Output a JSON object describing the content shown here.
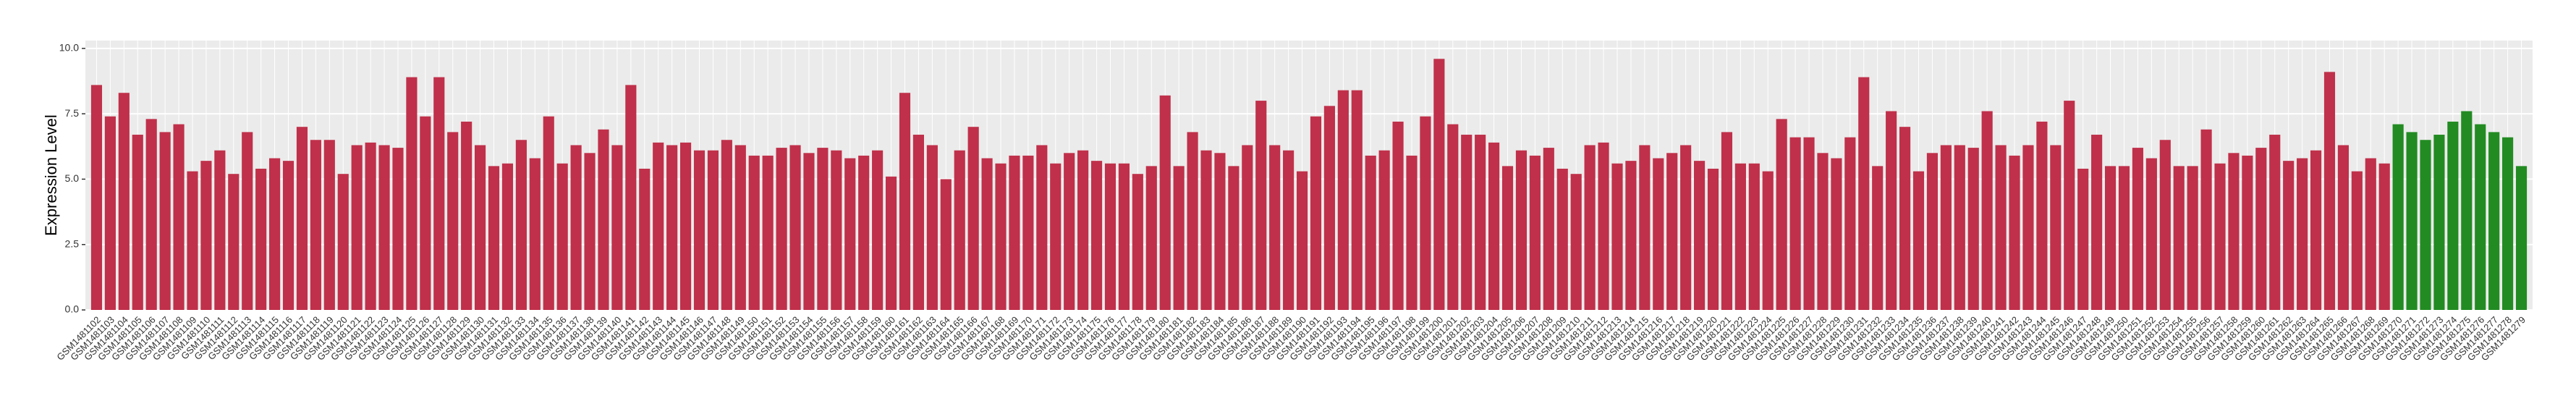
{
  "chart_data": {
    "type": "bar",
    "y_label": "Expression Level",
    "ylim": [
      0,
      10.3
    ],
    "yticks": [
      {
        "value": 0,
        "label": "0.0"
      },
      {
        "value": 2.5,
        "label": "2.5"
      },
      {
        "value": 5,
        "label": "5.0"
      },
      {
        "value": 7.5,
        "label": "7.5"
      },
      {
        "value": 10,
        "label": "10.0"
      }
    ],
    "grid": true,
    "categories": [
      "GSM1481102",
      "GSM1481103",
      "GSM1481104",
      "GSM1481105",
      "GSM1481106",
      "GSM1481107",
      "GSM1481108",
      "GSM1481109",
      "GSM1481110",
      "GSM1481111",
      "GSM1481112",
      "GSM1481113",
      "GSM1481114",
      "GSM1481115",
      "GSM1481116",
      "GSM1481117",
      "GSM1481118",
      "GSM1481119",
      "GSM1481120",
      "GSM1481121",
      "GSM1481122",
      "GSM1481123",
      "GSM1481124",
      "GSM1481125",
      "GSM1481126",
      "GSM1481127",
      "GSM1481128",
      "GSM1481129",
      "GSM1481130",
      "GSM1481131",
      "GSM1481132",
      "GSM1481133",
      "GSM1481134",
      "GSM1481135",
      "GSM1481136",
      "GSM1481137",
      "GSM1481138",
      "GSM1481139",
      "GSM1481140",
      "GSM1481141",
      "GSM1481142",
      "GSM1481143",
      "GSM1481144",
      "GSM1481145",
      "GSM1481146",
      "GSM1481147",
      "GSM1481148",
      "GSM1481149",
      "GSM1481150",
      "GSM1481151",
      "GSM1481152",
      "GSM1481153",
      "GSM1481154",
      "GSM1481155",
      "GSM1481156",
      "GSM1481157",
      "GSM1481158",
      "GSM1481159",
      "GSM1481160",
      "GSM1481161",
      "GSM1481162",
      "GSM1481163",
      "GSM1481164",
      "GSM1481165",
      "GSM1481166",
      "GSM1481167",
      "GSM1481168",
      "GSM1481169",
      "GSM1481170",
      "GSM1481171",
      "GSM1481172",
      "GSM1481173",
      "GSM1481174",
      "GSM1481175",
      "GSM1481176",
      "GSM1481177",
      "GSM1481178",
      "GSM1481179",
      "GSM1481180",
      "GSM1481181",
      "GSM1481182",
      "GSM1481183",
      "GSM1481184",
      "GSM1481185",
      "GSM1481186",
      "GSM1481187",
      "GSM1481188",
      "GSM1481189",
      "GSM1481190",
      "GSM1481191",
      "GSM1481192",
      "GSM1481193",
      "GSM1481194",
      "GSM1481195",
      "GSM1481196",
      "GSM1481197",
      "GSM1481198",
      "GSM1481199",
      "GSM1481200",
      "GSM1481201",
      "GSM1481202",
      "GSM1481203",
      "GSM1481204",
      "GSM1481205",
      "GSM1481206",
      "GSM1481207",
      "GSM1481208",
      "GSM1481209",
      "GSM1481210",
      "GSM1481211",
      "GSM1481212",
      "GSM1481213",
      "GSM1481214",
      "GSM1481215",
      "GSM1481216",
      "GSM1481217",
      "GSM1481218",
      "GSM1481219",
      "GSM1481220",
      "GSM1481221",
      "GSM1481222",
      "GSM1481223",
      "GSM1481224",
      "GSM1481225",
      "GSM1481226",
      "GSM1481227",
      "GSM1481228",
      "GSM1481229",
      "GSM1481230",
      "GSM1481231",
      "GSM1481232",
      "GSM1481233",
      "GSM1481234",
      "GSM1481235",
      "GSM1481236",
      "GSM1481237",
      "GSM1481238",
      "GSM1481239",
      "GSM1481240",
      "GSM1481241",
      "GSM1481242",
      "GSM1481243",
      "GSM1481244",
      "GSM1481245",
      "GSM1481246",
      "GSM1481247",
      "GSM1481248",
      "GSM1481249",
      "GSM1481250",
      "GSM1481251",
      "GSM1481252",
      "GSM1481253",
      "GSM1481254",
      "GSM1481255",
      "GSM1481256",
      "GSM1481257",
      "GSM1481258",
      "GSM1481259",
      "GSM1481260",
      "GSM1481261",
      "GSM1481262",
      "GSM1481263",
      "GSM1481264",
      "GSM1481265",
      "GSM1481266",
      "GSM1481267",
      "GSM1481268",
      "GSM1481269",
      "GSM1481270",
      "GSM1481271",
      "GSM1481272",
      "GSM1481273",
      "GSM1481274",
      "GSM1481275",
      "GSM1481276",
      "GSM1481277",
      "GSM1481278",
      "GSM1481279"
    ],
    "values": [
      8.6,
      7.4,
      8.3,
      6.7,
      7.3,
      6.8,
      7.1,
      5.3,
      5.7,
      6.1,
      5.2,
      6.8,
      5.4,
      5.8,
      5.7,
      7.0,
      6.5,
      6.5,
      5.2,
      6.3,
      6.4,
      6.3,
      6.2,
      8.9,
      7.4,
      8.9,
      6.8,
      7.2,
      6.3,
      5.5,
      5.6,
      6.5,
      5.8,
      7.4,
      5.6,
      6.3,
      6.0,
      6.9,
      6.3,
      8.6,
      5.4,
      6.4,
      6.3,
      6.4,
      6.1,
      6.1,
      6.5,
      6.3,
      5.9,
      5.9,
      6.2,
      6.3,
      6.0,
      6.2,
      6.1,
      5.8,
      5.9,
      6.1,
      5.1,
      8.3,
      6.7,
      6.3,
      5.0,
      6.1,
      7.0,
      5.8,
      5.6,
      5.9,
      5.9,
      6.3,
      5.6,
      6.0,
      6.1,
      5.7,
      5.6,
      5.6,
      5.2,
      5.5,
      8.2,
      5.5,
      6.8,
      6.1,
      6.0,
      5.5,
      6.3,
      8.0,
      6.3,
      6.1,
      5.3,
      7.4,
      7.8,
      8.4,
      8.4,
      5.9,
      6.1,
      7.2,
      5.9,
      7.4,
      9.6,
      7.1,
      6.7,
      6.7,
      6.4,
      5.5,
      6.1,
      5.9,
      6.2,
      5.4,
      5.2,
      6.3,
      6.4,
      5.6,
      5.7,
      6.3,
      5.8,
      6.0,
      6.3,
      5.7,
      5.4,
      6.8,
      5.6,
      5.6,
      5.3,
      7.3,
      6.6,
      6.6,
      6.0,
      5.8,
      6.6,
      8.9,
      5.5,
      7.6,
      7.0,
      5.3,
      6.0,
      6.3,
      6.3,
      6.2,
      7.6,
      6.3,
      5.9,
      6.3,
      7.2,
      6.3,
      8.0,
      5.4,
      6.7,
      5.5,
      5.5,
      6.2,
      5.8,
      6.5,
      5.5,
      5.5,
      6.9,
      5.6,
      6.0,
      5.9,
      6.2,
      6.7,
      5.7,
      5.8,
      6.1,
      9.1,
      6.3,
      5.3,
      5.8,
      5.6,
      7.1,
      6.8,
      6.5,
      6.7,
      7.2,
      7.6,
      7.1,
      6.8,
      6.6,
      5.5
    ],
    "colors": [
      "#c0304a",
      "#c0304a",
      "#c0304a",
      "#c0304a",
      "#c0304a",
      "#c0304a",
      "#c0304a",
      "#c0304a",
      "#c0304a",
      "#c0304a",
      "#c0304a",
      "#c0304a",
      "#c0304a",
      "#c0304a",
      "#c0304a",
      "#c0304a",
      "#c0304a",
      "#c0304a",
      "#c0304a",
      "#c0304a",
      "#c0304a",
      "#c0304a",
      "#c0304a",
      "#c0304a",
      "#c0304a",
      "#c0304a",
      "#c0304a",
      "#c0304a",
      "#c0304a",
      "#c0304a",
      "#c0304a",
      "#c0304a",
      "#c0304a",
      "#c0304a",
      "#c0304a",
      "#c0304a",
      "#c0304a",
      "#c0304a",
      "#c0304a",
      "#c0304a",
      "#c0304a",
      "#c0304a",
      "#c0304a",
      "#c0304a",
      "#c0304a",
      "#c0304a",
      "#c0304a",
      "#c0304a",
      "#c0304a",
      "#c0304a",
      "#c0304a",
      "#c0304a",
      "#c0304a",
      "#c0304a",
      "#c0304a",
      "#c0304a",
      "#c0304a",
      "#c0304a",
      "#c0304a",
      "#c0304a",
      "#c0304a",
      "#c0304a",
      "#c0304a",
      "#c0304a",
      "#c0304a",
      "#c0304a",
      "#c0304a",
      "#c0304a",
      "#c0304a",
      "#c0304a",
      "#c0304a",
      "#c0304a",
      "#c0304a",
      "#c0304a",
      "#c0304a",
      "#c0304a",
      "#c0304a",
      "#c0304a",
      "#c0304a",
      "#c0304a",
      "#c0304a",
      "#c0304a",
      "#c0304a",
      "#c0304a",
      "#c0304a",
      "#c0304a",
      "#c0304a",
      "#c0304a",
      "#c0304a",
      "#c0304a",
      "#c0304a",
      "#c0304a",
      "#c0304a",
      "#c0304a",
      "#c0304a",
      "#c0304a",
      "#c0304a",
      "#c0304a",
      "#c0304a",
      "#c0304a",
      "#c0304a",
      "#c0304a",
      "#c0304a",
      "#c0304a",
      "#c0304a",
      "#c0304a",
      "#c0304a",
      "#c0304a",
      "#c0304a",
      "#c0304a",
      "#c0304a",
      "#c0304a",
      "#c0304a",
      "#c0304a",
      "#c0304a",
      "#c0304a",
      "#c0304a",
      "#c0304a",
      "#c0304a",
      "#c0304a",
      "#c0304a",
      "#c0304a",
      "#c0304a",
      "#c0304a",
      "#c0304a",
      "#c0304a",
      "#c0304a",
      "#c0304a",
      "#c0304a",
      "#c0304a",
      "#c0304a",
      "#c0304a",
      "#c0304a",
      "#c0304a",
      "#c0304a",
      "#c0304a",
      "#c0304a",
      "#c0304a",
      "#c0304a",
      "#c0304a",
      "#c0304a",
      "#c0304a",
      "#c0304a",
      "#c0304a",
      "#c0304a",
      "#c0304a",
      "#c0304a",
      "#c0304a",
      "#c0304a",
      "#c0304a",
      "#c0304a",
      "#c0304a",
      "#c0304a",
      "#c0304a",
      "#c0304a",
      "#c0304a",
      "#c0304a",
      "#c0304a",
      "#c0304a",
      "#c0304a",
      "#c0304a",
      "#c0304a",
      "#c0304a",
      "#c0304a",
      "#c0304a",
      "#c0304a",
      "#c0304a",
      "#c0304a",
      "#228b22",
      "#228b22",
      "#228b22",
      "#228b22",
      "#228b22",
      "#228b22",
      "#228b22",
      "#228b22",
      "#228b22",
      "#228b22"
    ]
  }
}
